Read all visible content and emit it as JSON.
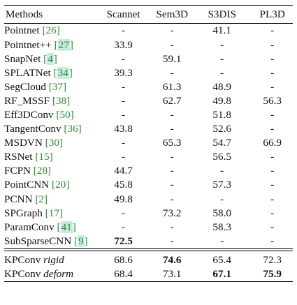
{
  "table": {
    "headers": [
      "Methods",
      "Scannet",
      "Sem3D",
      "S3DIS",
      "PL3D"
    ],
    "rows": [
      {
        "name": "Pointnet",
        "cite": "26",
        "values": [
          "-",
          "-",
          "41.1",
          "-"
        ]
      },
      {
        "name": "Pointnet++",
        "cite": "27",
        "values": [
          "33.9",
          "-",
          "-",
          "-"
        ]
      },
      {
        "name": "SnapNet",
        "cite": "4",
        "values": [
          "-",
          "59.1",
          "-",
          "-"
        ]
      },
      {
        "name": "SPLATNet",
        "cite": "34",
        "values": [
          "39.3",
          "-",
          "-",
          "-"
        ]
      },
      {
        "name": "SegCloud",
        "cite": "37",
        "values": [
          "-",
          "61.3",
          "48.9",
          "-"
        ]
      },
      {
        "name": "RF_MSSF",
        "cite": "38",
        "values": [
          "-",
          "62.7",
          "49.8",
          "56.3"
        ]
      },
      {
        "name": "Eff3DConv",
        "cite": "50",
        "values": [
          "-",
          "-",
          "51.8",
          "-"
        ]
      },
      {
        "name": "TangentConv",
        "cite": "36",
        "values": [
          "43.8",
          "-",
          "52.6",
          "-"
        ]
      },
      {
        "name": "MSDVN",
        "cite": "30",
        "values": [
          "-",
          "65.3",
          "54.7",
          "66.9"
        ]
      },
      {
        "name": "RSNet",
        "cite": "15",
        "values": [
          "-",
          "-",
          "56.5",
          "-"
        ]
      },
      {
        "name": "FCPN",
        "cite": "28",
        "values": [
          "44.7",
          "-",
          "-",
          "-"
        ]
      },
      {
        "name": "PointCNN",
        "cite": "20",
        "values": [
          "45.8",
          "-",
          "57.3",
          "-"
        ]
      },
      {
        "name": "PCNN",
        "cite": "2",
        "values": [
          "49.8",
          "-",
          "-",
          "-"
        ]
      },
      {
        "name": "SPGraph",
        "cite": "17",
        "values": [
          "-",
          "73.2",
          "58.0",
          "-"
        ]
      },
      {
        "name": "ParamConv",
        "cite": "41",
        "values": [
          "-",
          "-",
          "58.3",
          "-"
        ]
      },
      {
        "name": "SubSparseCNN",
        "cite": "9",
        "values": [
          "72.5",
          "-",
          "-",
          "-"
        ]
      }
    ],
    "ours": [
      {
        "name": "KPConv",
        "variant": "rigid",
        "values": [
          "68.6",
          "74.6",
          "65.4",
          "72.3"
        ]
      },
      {
        "name": "KPConv",
        "variant": "deform",
        "values": [
          "68.4",
          "73.1",
          "67.1",
          "75.9"
        ]
      }
    ]
  },
  "colors": {
    "citation_text": "#2c8e2c",
    "citation_highlight": "#c6ece0"
  }
}
